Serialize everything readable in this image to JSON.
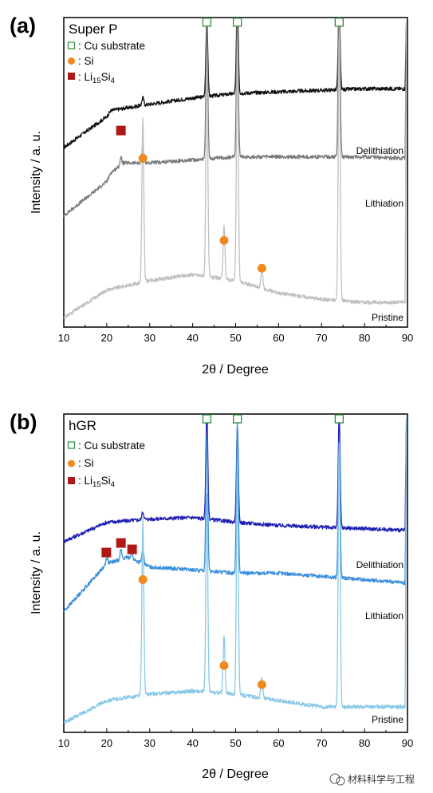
{
  "chart_data": [
    {
      "panel_label": "(a)",
      "type": "line",
      "sample_name": "Super P",
      "xlabel": "2θ / Degree",
      "ylabel": "Intensity / a. u.",
      "xlim": [
        10,
        90
      ],
      "xticks": [
        "10",
        "20",
        "30",
        "40",
        "50",
        "60",
        "70",
        "80",
        "90"
      ],
      "legend": [
        {
          "marker": "open-square",
          "color": "#2e8b3a",
          "label": ": Cu substrate"
        },
        {
          "marker": "circle",
          "color": "#ef8a1f",
          "label": ": Si"
        },
        {
          "marker": "filled-square",
          "color": "#b01818",
          "label": ": Li15Si4"
        }
      ],
      "series": [
        {
          "name": "Delithiation",
          "color": "#111111",
          "baseline": [
            [
              10,
              0.58
            ],
            [
              20,
              0.68
            ],
            [
              21,
              0.7
            ],
            [
              30,
              0.72
            ],
            [
              40,
              0.74
            ],
            [
              50,
              0.755
            ],
            [
              60,
              0.76
            ],
            [
              70,
              0.765
            ],
            [
              80,
              0.77
            ],
            [
              89.5,
              0.77
            ]
          ],
          "peaks": [
            [
              28.4,
              0.025
            ],
            [
              43.3,
              0.25
            ],
            [
              50.4,
              0.3
            ],
            [
              74.1,
              0.27
            ]
          ]
        },
        {
          "name": "Lithiation",
          "color": "#7a7a7a",
          "baseline": [
            [
              10,
              0.36
            ],
            [
              20,
              0.47
            ],
            [
              21,
              0.5
            ],
            [
              24,
              0.53
            ],
            [
              30,
              0.53
            ],
            [
              40,
              0.54
            ],
            [
              50,
              0.55
            ],
            [
              60,
              0.55
            ],
            [
              70,
              0.55
            ],
            [
              80,
              0.55
            ],
            [
              89.5,
              0.545
            ]
          ],
          "peaks": [
            [
              23.3,
              0.025
            ],
            [
              28.4,
              0.055
            ],
            [
              43.3,
              0.43
            ],
            [
              50.4,
              0.47
            ],
            [
              74.1,
              0.56
            ]
          ]
        },
        {
          "name": "Pristine",
          "color": "#c0c0c0",
          "baseline": [
            [
              10,
              0.03
            ],
            [
              20,
              0.12
            ],
            [
              30,
              0.15
            ],
            [
              40,
              0.17
            ],
            [
              50,
              0.15
            ],
            [
              60,
              0.11
            ],
            [
              70,
              0.09
            ],
            [
              80,
              0.08
            ],
            [
              89.5,
              0.08
            ]
          ],
          "peaks": [
            [
              28.4,
              0.53
            ],
            [
              43.3,
              0.68
            ],
            [
              47.3,
              0.17
            ],
            [
              50.4,
              0.73
            ],
            [
              56.1,
              0.06
            ],
            [
              74.1,
              0.85
            ]
          ]
        }
      ],
      "markers": [
        {
          "symbol": "open-square",
          "x": 43.3,
          "y": 0.985
        },
        {
          "symbol": "open-square",
          "x": 50.4,
          "y": 0.985
        },
        {
          "symbol": "open-square",
          "x": 74.1,
          "y": 0.985
        },
        {
          "symbol": "filled-square",
          "x": 23.3,
          "y": 0.635
        },
        {
          "symbol": "circle",
          "x": 28.4,
          "y": 0.545
        },
        {
          "symbol": "circle",
          "x": 47.3,
          "y": 0.28
        },
        {
          "symbol": "circle",
          "x": 56.1,
          "y": 0.19
        }
      ]
    },
    {
      "panel_label": "(b)",
      "type": "line",
      "sample_name": "hGR",
      "xlabel": "2θ / Degree",
      "ylabel": "Intensity / a. u.",
      "xlim": [
        10,
        90
      ],
      "xticks": [
        "10",
        "20",
        "30",
        "40",
        "50",
        "60",
        "70",
        "80",
        "90"
      ],
      "legend": [
        {
          "marker": "open-square",
          "color": "#2e8b3a",
          "label": ": Cu substrate"
        },
        {
          "marker": "circle",
          "color": "#ef8a1f",
          "label": ": Si"
        },
        {
          "marker": "filled-square",
          "color": "#b01818",
          "label": ": Li15Si4"
        }
      ],
      "series": [
        {
          "name": "Delithiation",
          "color": "#1f1fb4",
          "baseline": [
            [
              10,
              0.6
            ],
            [
              20,
              0.66
            ],
            [
              30,
              0.67
            ],
            [
              40,
              0.675
            ],
            [
              50,
              0.66
            ],
            [
              60,
              0.65
            ],
            [
              70,
              0.645
            ],
            [
              80,
              0.64
            ],
            [
              89.5,
              0.635
            ]
          ],
          "peaks": [
            [
              28.4,
              0.025
            ],
            [
              43.3,
              0.35
            ],
            [
              50.4,
              0.3
            ],
            [
              74.1,
              0.35
            ]
          ]
        },
        {
          "name": "Lithiation",
          "color": "#3b8fdc",
          "baseline": [
            [
              10,
              0.38
            ],
            [
              20,
              0.53
            ],
            [
              25,
              0.55
            ],
            [
              30,
              0.52
            ],
            [
              40,
              0.51
            ],
            [
              50,
              0.5
            ],
            [
              60,
              0.5
            ],
            [
              70,
              0.49
            ],
            [
              80,
              0.48
            ],
            [
              89.5,
              0.47
            ]
          ],
          "peaks": [
            [
              20.0,
              0.02
            ],
            [
              23.3,
              0.03
            ],
            [
              25.8,
              0.02
            ],
            [
              28.4,
              0.05
            ],
            [
              43.3,
              0.43
            ],
            [
              50.4,
              0.47
            ],
            [
              74.1,
              0.43
            ]
          ]
        },
        {
          "name": "Pristine",
          "color": "#88c8e8",
          "baseline": [
            [
              10,
              0.03
            ],
            [
              20,
              0.1
            ],
            [
              30,
              0.12
            ],
            [
              40,
              0.13
            ],
            [
              50,
              0.12
            ],
            [
              60,
              0.1
            ],
            [
              70,
              0.08
            ],
            [
              80,
              0.08
            ],
            [
              89.5,
              0.08
            ]
          ],
          "peaks": [
            [
              28.4,
              0.55
            ],
            [
              43.3,
              0.62
            ],
            [
              47.3,
              0.18
            ],
            [
              50.4,
              0.7
            ],
            [
              56.1,
              0.06
            ],
            [
              74.1,
              0.83
            ]
          ]
        }
      ],
      "markers": [
        {
          "symbol": "open-square",
          "x": 43.3,
          "y": 0.985
        },
        {
          "symbol": "open-square",
          "x": 50.4,
          "y": 0.985
        },
        {
          "symbol": "open-square",
          "x": 74.1,
          "y": 0.985
        },
        {
          "symbol": "filled-square",
          "x": 19.9,
          "y": 0.565
        },
        {
          "symbol": "filled-square",
          "x": 23.3,
          "y": 0.595
        },
        {
          "symbol": "filled-square",
          "x": 25.9,
          "y": 0.575
        },
        {
          "symbol": "circle",
          "x": 28.4,
          "y": 0.48
        },
        {
          "symbol": "circle",
          "x": 47.3,
          "y": 0.21
        },
        {
          "symbol": "circle",
          "x": 56.1,
          "y": 0.15
        }
      ]
    }
  ],
  "watermark": {
    "text": "材料科学与工程"
  }
}
